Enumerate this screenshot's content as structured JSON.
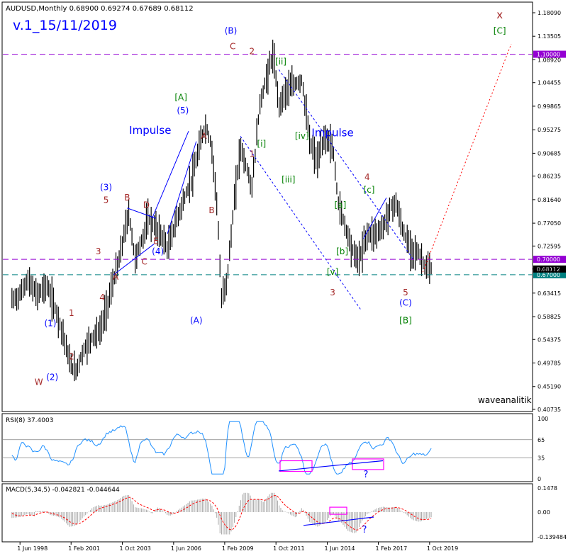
{
  "header": {
    "symbol_line": "AUDUSD,Monthly  0.68900 0.69274 0.67689 0.68112",
    "version": "v.1_15/11/2019"
  },
  "watermark": "waveanalitik",
  "colors": {
    "background": "#ffffff",
    "price_bars": "#000000",
    "wave_blue": "#0000ff",
    "wave_red": "#a52a2a",
    "wave_green": "#008000",
    "purple_line": "#9400d3",
    "teal_line": "#008080",
    "rsi_line": "#1e90ff",
    "macd_hist": "#a9a9a9",
    "macd_signal": "#ff0000",
    "magenta_box": "#ff00ff"
  },
  "chart_data": [
    {
      "type": "bar",
      "name": "AUDUSD Monthly",
      "ylim": [
        0.4,
        1.19
      ],
      "y_ticks": [
        "1.18090",
        "1.13505",
        "1.08920",
        "1.04455",
        "0.99865",
        "0.95275",
        "0.90685",
        "0.86235",
        "0.81640",
        "0.77050",
        "0.72595",
        "0.68117",
        "0.63415",
        "0.58825",
        "0.54375",
        "0.49785",
        "0.45190",
        "0.40735"
      ],
      "x_ticks": [
        "1 Jun 1998",
        "1 Feb 2001",
        "1 Oct 2003",
        "1 Jun 2006",
        "1 Feb 2009",
        "1 Oct 2011",
        "1 Jun 2014",
        "1 Feb 2017",
        "1 Oct 2019"
      ],
      "price_path": [
        [
          1998.0,
          0.62
        ],
        [
          1998.4,
          0.63
        ],
        [
          1998.8,
          0.66
        ],
        [
          1999.3,
          0.63
        ],
        [
          1999.8,
          0.65
        ],
        [
          2000.3,
          0.6
        ],
        [
          2000.7,
          0.55
        ],
        [
          2001.0,
          0.5
        ],
        [
          2001.3,
          0.48
        ],
        [
          2001.7,
          0.52
        ],
        [
          2002.2,
          0.55
        ],
        [
          2002.6,
          0.56
        ],
        [
          2002.9,
          0.6
        ],
        [
          2003.3,
          0.66
        ],
        [
          2003.6,
          0.7
        ],
        [
          2003.9,
          0.76
        ],
        [
          2004.1,
          0.79
        ],
        [
          2004.4,
          0.7
        ],
        [
          2004.8,
          0.74
        ],
        [
          2005.1,
          0.78
        ],
        [
          2005.5,
          0.76
        ],
        [
          2005.9,
          0.74
        ],
        [
          2006.1,
          0.72
        ],
        [
          2006.6,
          0.78
        ],
        [
          2007.0,
          0.82
        ],
        [
          2007.4,
          0.86
        ],
        [
          2007.9,
          0.94
        ],
        [
          2008.1,
          0.96
        ],
        [
          2008.4,
          0.92
        ],
        [
          2008.7,
          0.8
        ],
        [
          2008.9,
          0.62
        ],
        [
          2009.2,
          0.66
        ],
        [
          2009.6,
          0.82
        ],
        [
          2009.9,
          0.92
        ],
        [
          2010.2,
          0.88
        ],
        [
          2010.5,
          0.84
        ],
        [
          2010.9,
          1.0
        ],
        [
          2011.3,
          1.06
        ],
        [
          2011.6,
          1.1
        ],
        [
          2011.9,
          1.0
        ],
        [
          2012.3,
          1.03
        ],
        [
          2012.7,
          1.04
        ],
        [
          2013.1,
          1.05
        ],
        [
          2013.5,
          0.93
        ],
        [
          2013.9,
          0.89
        ],
        [
          2014.3,
          0.94
        ],
        [
          2014.7,
          0.92
        ],
        [
          2015.0,
          0.81
        ],
        [
          2015.4,
          0.76
        ],
        [
          2015.8,
          0.71
        ],
        [
          2016.1,
          0.7
        ],
        [
          2016.5,
          0.75
        ],
        [
          2016.9,
          0.75
        ],
        [
          2017.3,
          0.76
        ],
        [
          2017.7,
          0.8
        ],
        [
          2018.0,
          0.81
        ],
        [
          2018.4,
          0.75
        ],
        [
          2018.8,
          0.72
        ],
        [
          2019.2,
          0.71
        ],
        [
          2019.6,
          0.68
        ],
        [
          2019.9,
          0.68
        ]
      ],
      "levels": [
        {
          "label": "1.10000",
          "value": 1.1,
          "style": "purple-dash"
        },
        {
          "label": "0.70000",
          "value": 0.7,
          "style": "purple-dash"
        },
        {
          "label": "0.67000",
          "value": 0.67,
          "style": "teal-dash"
        },
        {
          "label": "0.68112",
          "value": 0.68112,
          "style": "price"
        }
      ],
      "annotations": [
        {
          "text": "Impulse",
          "x": 2005.2,
          "y": 0.945,
          "color": "blue"
        },
        {
          "text": "Impulse",
          "x": 2014.7,
          "y": 0.94,
          "color": "blue"
        },
        {
          "text": "[A]",
          "x": 2006.8,
          "y": 1.01,
          "color": "green"
        },
        {
          "text": "(5)",
          "x": 2006.9,
          "y": 0.985,
          "color": "blue"
        },
        {
          "text": "(B)",
          "x": 2009.4,
          "y": 1.14,
          "color": "blue"
        },
        {
          "text": "C",
          "x": 2009.5,
          "y": 1.11,
          "color": "red"
        },
        {
          "text": "2",
          "x": 2010.5,
          "y": 1.1,
          "color": "red"
        },
        {
          "text": "[ii]",
          "x": 2012.0,
          "y": 1.08,
          "color": "green"
        },
        {
          "text": "x",
          "x": 2023.4,
          "y": 1.17,
          "color": "red"
        },
        {
          "text": "[C]",
          "x": 2023.4,
          "y": 1.14,
          "color": "green"
        },
        {
          "text": "A",
          "x": 2008.0,
          "y": 0.935,
          "color": "red"
        },
        {
          "text": "B",
          "x": 2008.4,
          "y": 0.79,
          "color": "red"
        },
        {
          "text": "1",
          "x": 2010.5,
          "y": 0.9,
          "color": "red"
        },
        {
          "text": "[i]",
          "x": 2011.0,
          "y": 0.92,
          "color": "green"
        },
        {
          "text": "[iii]",
          "x": 2012.4,
          "y": 0.85,
          "color": "green"
        },
        {
          "text": "[iv]",
          "x": 2013.1,
          "y": 0.935,
          "color": "green"
        },
        {
          "text": "4",
          "x": 2016.5,
          "y": 0.855,
          "color": "red"
        },
        {
          "text": "[c]",
          "x": 2016.6,
          "y": 0.83,
          "color": "green"
        },
        {
          "text": "[a]",
          "x": 2015.1,
          "y": 0.8,
          "color": "green"
        },
        {
          "text": "[b]",
          "x": 2015.2,
          "y": 0.71,
          "color": "green"
        },
        {
          "text": "[v]",
          "x": 2014.7,
          "y": 0.67,
          "color": "green"
        },
        {
          "text": "3",
          "x": 2014.7,
          "y": 0.63,
          "color": "red"
        },
        {
          "text": "5",
          "x": 2018.5,
          "y": 0.63,
          "color": "red"
        },
        {
          "text": "(C)",
          "x": 2018.5,
          "y": 0.61,
          "color": "blue"
        },
        {
          "text": "[B]",
          "x": 2018.5,
          "y": 0.575,
          "color": "green"
        },
        {
          "text": "(3)",
          "x": 2002.9,
          "y": 0.835,
          "color": "blue"
        },
        {
          "text": "5",
          "x": 2002.9,
          "y": 0.81,
          "color": "red"
        },
        {
          "text": "B",
          "x": 2004.0,
          "y": 0.815,
          "color": "red"
        },
        {
          "text": "D",
          "x": 2005.0,
          "y": 0.8,
          "color": "red"
        },
        {
          "text": "E",
          "x": 2005.5,
          "y": 0.73,
          "color": "red"
        },
        {
          "text": "(4)",
          "x": 2005.6,
          "y": 0.71,
          "color": "blue"
        },
        {
          "text": "C",
          "x": 2004.9,
          "y": 0.69,
          "color": "red"
        },
        {
          "text": "A",
          "x": 2003.4,
          "y": 0.66,
          "color": "red"
        },
        {
          "text": "3",
          "x": 2002.5,
          "y": 0.71,
          "color": "red"
        },
        {
          "text": "4",
          "x": 2002.7,
          "y": 0.62,
          "color": "red"
        },
        {
          "text": "1",
          "x": 2001.1,
          "y": 0.59,
          "color": "red"
        },
        {
          "text": "(1)",
          "x": 2000.0,
          "y": 0.57,
          "color": "blue"
        },
        {
          "text": "2",
          "x": 2001.1,
          "y": 0.505,
          "color": "red"
        },
        {
          "text": "(2)",
          "x": 2000.1,
          "y": 0.465,
          "color": "blue"
        },
        {
          "text": "W",
          "x": 1999.4,
          "y": 0.455,
          "color": "red"
        },
        {
          "text": "(A)",
          "x": 2007.6,
          "y": 0.575,
          "color": "blue"
        }
      ]
    },
    {
      "type": "line",
      "name": "RSI(8) 37.4003",
      "ylim": [
        0,
        100
      ],
      "y_ticks": [
        "100",
        "65",
        "35",
        "0"
      ],
      "levels": [
        65,
        35
      ],
      "question": "?"
    },
    {
      "type": "bar",
      "name": "MACD(5,34,5) -0.042821 -0.044644",
      "ylim": [
        -0.139484,
        0.1478
      ],
      "y_ticks": [
        "0.1478",
        "0.00",
        "-0.139484"
      ],
      "question": "?"
    }
  ]
}
